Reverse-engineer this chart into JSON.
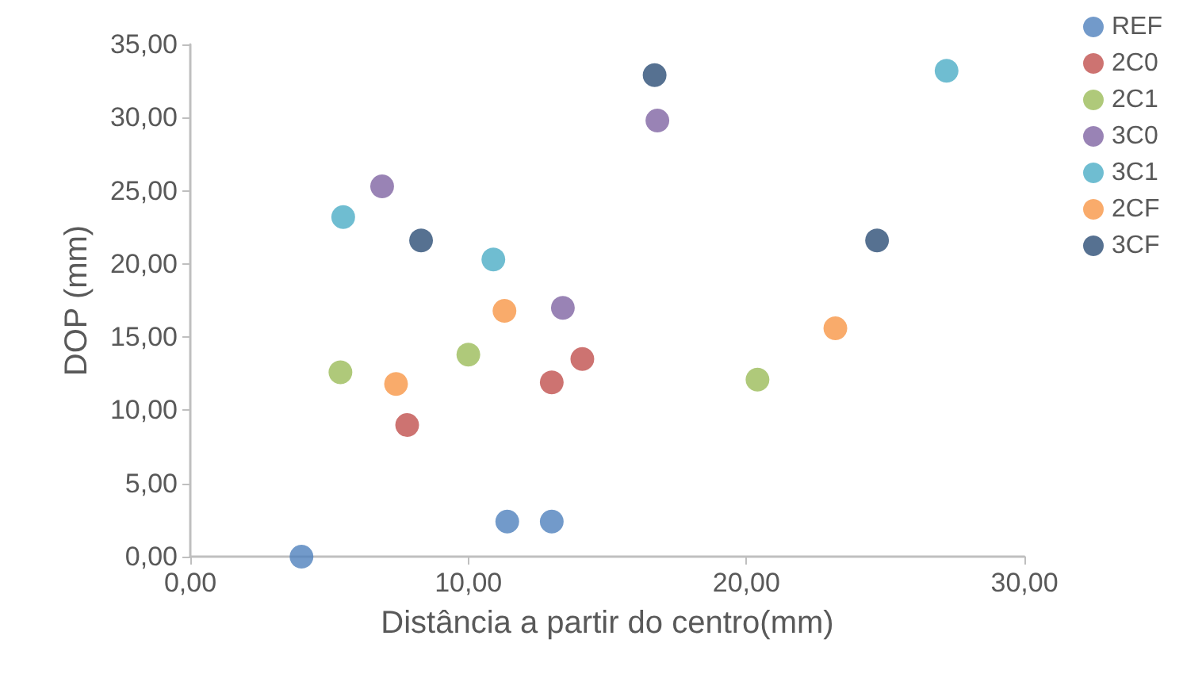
{
  "chart_data": {
    "type": "scatter",
    "xlabel": "Distância a partir do centro(mm)",
    "ylabel": "DOP (mm)",
    "xlim": [
      0,
      30
    ],
    "ylim": [
      0,
      35
    ],
    "xticks": [
      {
        "value": 0,
        "label": "0,00"
      },
      {
        "value": 10,
        "label": "10,00"
      },
      {
        "value": 20,
        "label": "20,00"
      },
      {
        "value": 30,
        "label": "30,00"
      }
    ],
    "yticks": [
      {
        "value": 0,
        "label": "0,00"
      },
      {
        "value": 5,
        "label": "5,00"
      },
      {
        "value": 10,
        "label": "10,00"
      },
      {
        "value": 15,
        "label": "15,00"
      },
      {
        "value": 20,
        "label": "20,00"
      },
      {
        "value": 25,
        "label": "25,00"
      },
      {
        "value": 30,
        "label": "30,00"
      },
      {
        "value": 35,
        "label": "35,00"
      }
    ],
    "grid": false,
    "legend": "top right",
    "marker": "circle",
    "series": [
      {
        "name": "REF",
        "color": "#4f81bd",
        "x": [
          4.0,
          11.4,
          13.0
        ],
        "values": [
          0.0,
          2.4,
          2.4
        ]
      },
      {
        "name": "2C0",
        "color": "#c0504d",
        "x": [
          7.8,
          13.0,
          14.1
        ],
        "values": [
          9.0,
          11.9,
          13.5
        ]
      },
      {
        "name": "2C1",
        "color": "#9bbb59",
        "x": [
          5.4,
          10.0,
          20.4
        ],
        "values": [
          12.6,
          13.8,
          12.1
        ]
      },
      {
        "name": "3C0",
        "color": "#8064a2",
        "x": [
          6.9,
          13.4,
          16.8
        ],
        "values": [
          25.3,
          17.0,
          29.8
        ]
      },
      {
        "name": "3C1",
        "color": "#4bacc6",
        "x": [
          5.5,
          10.9,
          27.2
        ],
        "values": [
          23.2,
          20.3,
          33.2
        ]
      },
      {
        "name": "2CF",
        "color": "#f79646",
        "x": [
          7.4,
          11.3,
          23.2
        ],
        "values": [
          11.8,
          16.8,
          15.6
        ]
      },
      {
        "name": "3CF",
        "color": "#2c4d75",
        "x": [
          8.3,
          16.7,
          24.7
        ],
        "values": [
          21.6,
          32.9,
          21.6
        ]
      }
    ]
  }
}
